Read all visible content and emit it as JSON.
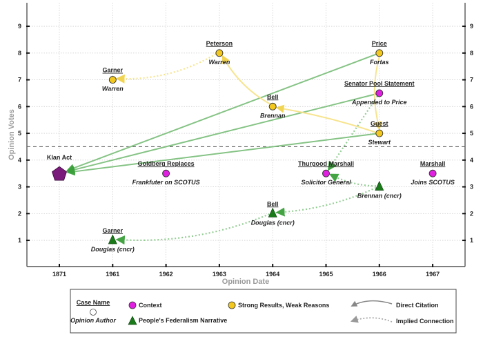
{
  "chart_data": {
    "type": "scatter",
    "title": "",
    "xlabel": "Opinion Date",
    "ylabel": "Opinion Votes",
    "categories": [
      "1871",
      "1961",
      "1962",
      "1963",
      "1964",
      "1965",
      "1966",
      "1967"
    ],
    "y_ticks": [
      1,
      2,
      3,
      4,
      5,
      6,
      7,
      8,
      9
    ],
    "ylim": [
      0,
      9.9
    ],
    "grid": true,
    "threshold_line": 4.5,
    "colors": {
      "context": "#e020e0",
      "strong_results": "#f2c81e",
      "peoples_federalism": "#1a7a1a",
      "klan_act": "#7a1a7a",
      "direct_citation_green": "#7fc07f",
      "direct_citation_yellow": "#f7e38a",
      "implied_green": "#8fcc8f",
      "implied_yellow": "#f7e38a"
    },
    "points": [
      {
        "id": "klan",
        "category": "1871",
        "votes": 3.5,
        "kind": "klan_act",
        "case": "Klan Act",
        "author": ""
      },
      {
        "id": "garner-warren",
        "category": "1961",
        "votes": 7,
        "kind": "strong_results",
        "case": "Garner",
        "author": "Warren"
      },
      {
        "id": "garner-douglas",
        "category": "1961",
        "votes": 1,
        "kind": "peoples_federalism",
        "case": "Garner",
        "author": "Douglas (cncr)"
      },
      {
        "id": "goldberg",
        "category": "1962",
        "votes": 3.5,
        "kind": "context",
        "case": "Goldberg Replaces",
        "author": "Frankfuter on SCOTUS"
      },
      {
        "id": "peterson",
        "category": "1963",
        "votes": 8,
        "kind": "strong_results",
        "case": "Peterson",
        "author": "Warren"
      },
      {
        "id": "bell-brennan",
        "category": "1964",
        "votes": 6,
        "kind": "strong_results",
        "case": "Bell",
        "author": "Brennan"
      },
      {
        "id": "bell-douglas",
        "category": "1964",
        "votes": 2,
        "kind": "peoples_federalism",
        "case": "Bell",
        "author": "Douglas (cncr)"
      },
      {
        "id": "thurgood",
        "category": "1965",
        "votes": 3.5,
        "kind": "context",
        "case": "Thurgood Marshall",
        "author": "Solicitor General"
      },
      {
        "id": "price",
        "category": "1966",
        "votes": 8,
        "kind": "strong_results",
        "case": "Price",
        "author": "Fortas"
      },
      {
        "id": "senator",
        "category": "1966",
        "votes": 6.5,
        "kind": "context",
        "case": "Senator Pool Statement",
        "author": "Appended to Price"
      },
      {
        "id": "guest-stewart",
        "category": "1966",
        "votes": 5,
        "kind": "strong_results",
        "case": "Guest",
        "author": "Stewart"
      },
      {
        "id": "guest-brennan",
        "category": "1966",
        "votes": 3,
        "kind": "peoples_federalism",
        "case": "",
        "author": "Brennan (cncr)"
      },
      {
        "id": "marshall",
        "category": "1967",
        "votes": 3.5,
        "kind": "context",
        "case": "Marshall",
        "author": "Joins SCOTUS"
      }
    ],
    "connections": [
      {
        "from": "price",
        "to": "klan",
        "type": "direct",
        "color": "green"
      },
      {
        "from": "senator",
        "to": "klan",
        "type": "direct",
        "color": "green"
      },
      {
        "from": "guest-stewart",
        "to": "klan",
        "type": "direct",
        "color": "green"
      },
      {
        "from": "price",
        "to": "guest-stewart",
        "type": "direct",
        "color": "yellow"
      },
      {
        "from": "guest-stewart",
        "to": "bell-brennan",
        "type": "direct",
        "color": "yellow"
      },
      {
        "from": "bell-brennan",
        "to": "peterson",
        "type": "direct",
        "color": "yellow"
      },
      {
        "from": "peterson",
        "to": "garner-warren",
        "type": "implied",
        "color": "yellow"
      },
      {
        "from": "senator",
        "to": "thurgood",
        "type": "implied",
        "color": "green"
      },
      {
        "from": "guest-brennan",
        "to": "thurgood",
        "type": "implied",
        "color": "green"
      },
      {
        "from": "guest-brennan",
        "to": "bell-douglas",
        "type": "implied",
        "color": "green"
      },
      {
        "from": "bell-douglas",
        "to": "garner-douglas",
        "type": "implied",
        "color": "green"
      }
    ]
  },
  "legend": {
    "case_name": "Case Name",
    "opinion_author": "Opinion Author",
    "context": "Context",
    "peoples_federalism": "People's Federalism Narrative",
    "strong_results": "Strong Results, Weak Reasons",
    "direct_citation": "Direct Citation",
    "implied_connection": "Implied Connection"
  }
}
